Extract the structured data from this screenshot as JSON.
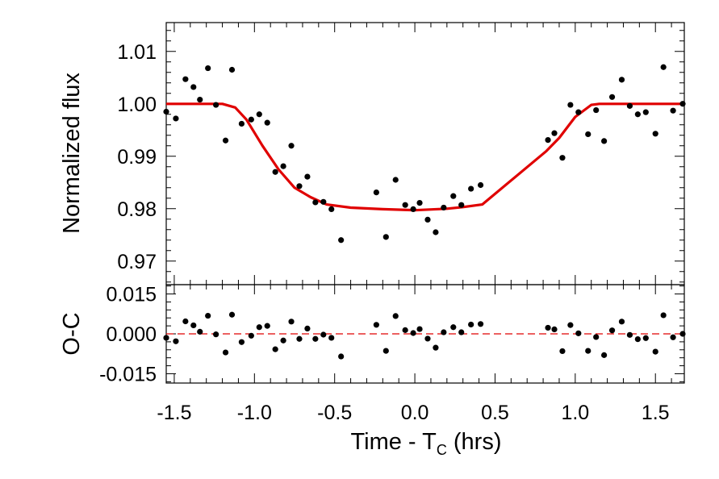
{
  "chart_data": [
    {
      "type": "scatter",
      "panel": "top",
      "title": "",
      "xlabel": "",
      "ylabel": "Normalized flux",
      "xlim": [
        -1.55,
        1.68
      ],
      "ylim": [
        0.9655,
        1.0155
      ],
      "y_ticks": [
        0.97,
        0.98,
        0.99,
        1.0,
        1.01
      ],
      "y_tick_labels": [
        "0.97",
        "0.98",
        "0.99",
        "1.00",
        "1.01"
      ],
      "grid": false,
      "colors": {
        "points": "#000000",
        "model": "#e00000"
      },
      "series": [
        {
          "role": "observed",
          "points": [
            [
              -1.55,
              0.9985
            ],
            [
              -1.49,
              0.9972
            ],
            [
              -1.43,
              1.0047
            ],
            [
              -1.38,
              1.0032
            ],
            [
              -1.34,
              1.0008
            ],
            [
              -1.29,
              1.0068
            ],
            [
              -1.24,
              0.9998
            ],
            [
              -1.18,
              0.993
            ],
            [
              -1.14,
              1.0065
            ],
            [
              -1.08,
              0.9962
            ],
            [
              -1.02,
              0.997
            ],
            [
              -0.97,
              0.998
            ],
            [
              -0.92,
              0.9964
            ],
            [
              -0.87,
              0.987
            ],
            [
              -0.82,
              0.9881
            ],
            [
              -0.77,
              0.992
            ],
            [
              -0.72,
              0.9843
            ],
            [
              -0.67,
              0.9861
            ],
            [
              -0.62,
              0.9812
            ],
            [
              -0.57,
              0.9813
            ],
            [
              -0.52,
              0.9799
            ],
            [
              -0.46,
              0.974
            ],
            [
              -0.24,
              0.9831
            ],
            [
              -0.18,
              0.9746
            ],
            [
              -0.12,
              0.9855
            ],
            [
              -0.06,
              0.9807
            ],
            [
              -0.01,
              0.9799
            ],
            [
              0.03,
              0.9811
            ],
            [
              0.08,
              0.9779
            ],
            [
              0.13,
              0.9755
            ],
            [
              0.18,
              0.9802
            ],
            [
              0.24,
              0.9824
            ],
            [
              0.29,
              0.9807
            ],
            [
              0.35,
              0.9838
            ],
            [
              0.41,
              0.9845
            ],
            [
              0.83,
              0.9931
            ],
            [
              0.87,
              0.9944
            ],
            [
              0.92,
              0.9897
            ],
            [
              0.97,
              0.9998
            ],
            [
              1.02,
              0.9984
            ],
            [
              1.08,
              0.9942
            ],
            [
              1.13,
              0.9988
            ],
            [
              1.18,
              0.9929
            ],
            [
              1.23,
              1.0013
            ],
            [
              1.29,
              1.0046
            ],
            [
              1.34,
              0.9996
            ],
            [
              1.39,
              0.998
            ],
            [
              1.44,
              0.9984
            ],
            [
              1.5,
              0.9943
            ],
            [
              1.55,
              1.007
            ],
            [
              1.61,
              0.9987
            ],
            [
              1.67,
              1.0
            ]
          ]
        },
        {
          "role": "model",
          "points": [
            [
              -1.55,
              1.0
            ],
            [
              -1.2,
              1.0
            ],
            [
              -1.12,
              0.9993
            ],
            [
              -1.05,
              0.997
            ],
            [
              -0.95,
              0.992
            ],
            [
              -0.85,
              0.9875
            ],
            [
              -0.75,
              0.984
            ],
            [
              -0.65,
              0.9822
            ],
            [
              -0.55,
              0.9808
            ],
            [
              -0.4,
              0.9802
            ],
            [
              -0.2,
              0.9799
            ],
            [
              0.0,
              0.9797
            ],
            [
              0.2,
              0.98
            ],
            [
              0.3,
              0.9803
            ],
            [
              0.42,
              0.9808
            ],
            [
              0.82,
              0.991
            ],
            [
              0.9,
              0.9935
            ],
            [
              1.0,
              0.9975
            ],
            [
              1.1,
              0.9998
            ],
            [
              1.15,
              1.0
            ],
            [
              1.68,
              1.0
            ]
          ]
        }
      ]
    },
    {
      "type": "scatter",
      "panel": "bottom",
      "title": "",
      "xlabel": "Time - T",
      "xlabel_subscript": "C",
      "xlabel_suffix": " (hrs)",
      "ylabel": "O-C",
      "xlim": [
        -1.55,
        1.68
      ],
      "ylim": [
        -0.0185,
        0.0185
      ],
      "x_ticks": [
        -1.5,
        -1.0,
        -0.5,
        0.0,
        0.5,
        1.0,
        1.5
      ],
      "x_tick_labels": [
        "-1.5",
        "-1.0",
        "-0.5",
        "0.0",
        "0.5",
        "1.0",
        "1.5"
      ],
      "y_ticks": [
        -0.015,
        0.0,
        0.015
      ],
      "y_tick_labels": [
        "-0.015",
        "0.000",
        "0.015"
      ],
      "grid": false,
      "reference_line": {
        "y": 0.0,
        "style": "dashed",
        "color": "#e00000"
      },
      "series": [
        {
          "role": "residuals",
          "points": [
            [
              -1.55,
              -0.0015
            ],
            [
              -1.49,
              -0.0028
            ],
            [
              -1.43,
              0.0047
            ],
            [
              -1.38,
              0.0032
            ],
            [
              -1.34,
              0.0008
            ],
            [
              -1.29,
              0.0068
            ],
            [
              -1.24,
              -0.0002
            ],
            [
              -1.18,
              -0.007
            ],
            [
              -1.14,
              0.0072
            ],
            [
              -1.08,
              -0.0031
            ],
            [
              -1.02,
              -0.0007
            ],
            [
              -0.97,
              0.0025
            ],
            [
              -0.92,
              0.003
            ],
            [
              -0.87,
              -0.0058
            ],
            [
              -0.82,
              -0.0025
            ],
            [
              -0.77,
              0.0046
            ],
            [
              -0.72,
              -0.0019
            ],
            [
              -0.67,
              0.002
            ],
            [
              -0.62,
              -0.0019
            ],
            [
              -0.57,
              -0.0003
            ],
            [
              -0.52,
              -0.0015
            ],
            [
              -0.46,
              -0.0085
            ],
            [
              -0.24,
              0.0034
            ],
            [
              -0.18,
              -0.0064
            ],
            [
              -0.12,
              0.0067
            ],
            [
              -0.06,
              0.0014
            ],
            [
              -0.01,
              0.0003
            ],
            [
              0.03,
              0.0018
            ],
            [
              0.08,
              -0.0018
            ],
            [
              0.13,
              -0.0052
            ],
            [
              0.18,
              0.0006
            ],
            [
              0.24,
              0.0025
            ],
            [
              0.29,
              0.0006
            ],
            [
              0.35,
              0.0035
            ],
            [
              0.41,
              0.0037
            ],
            [
              0.83,
              0.0023
            ],
            [
              0.87,
              0.0017
            ],
            [
              0.92,
              -0.0065
            ],
            [
              0.97,
              0.0033
            ],
            [
              1.02,
              0.0002
            ],
            [
              1.08,
              -0.0064
            ],
            [
              1.13,
              -0.0012
            ],
            [
              1.18,
              -0.008
            ],
            [
              1.23,
              0.0013
            ],
            [
              1.29,
              0.0046
            ],
            [
              1.34,
              -0.0004
            ],
            [
              1.39,
              -0.002
            ],
            [
              1.44,
              -0.0016
            ],
            [
              1.5,
              -0.0067
            ],
            [
              1.55,
              0.007
            ],
            [
              1.61,
              -0.0013
            ],
            [
              1.67,
              0.0
            ]
          ]
        }
      ]
    }
  ]
}
